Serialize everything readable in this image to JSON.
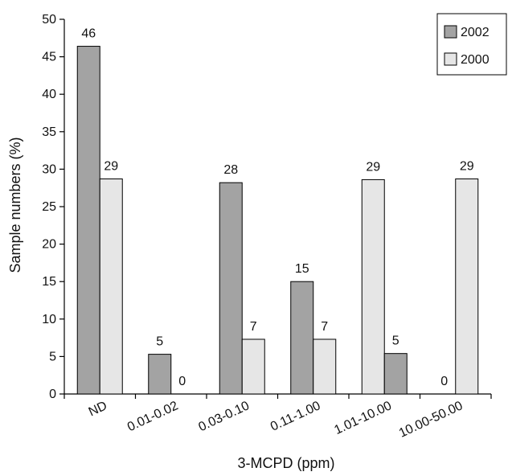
{
  "chart_data": {
    "type": "bar",
    "categories": [
      "ND",
      "0.01-0.02",
      "0.03-0.10",
      "0.11-1.00",
      "1.01-10.00",
      "10.00-50.00"
    ],
    "series": [
      {
        "name": "2002",
        "values": [
          46,
          5,
          28,
          15,
          5,
          0
        ],
        "labels": [
          "46",
          "5",
          "28",
          "15",
          "5",
          "0"
        ],
        "color": "#a3a3a3"
      },
      {
        "name": "2000",
        "values": [
          29,
          0,
          7,
          7,
          29,
          29
        ],
        "labels": [
          "29",
          "0",
          "7",
          "7",
          "29",
          "29"
        ],
        "color": "#e6e6e6"
      }
    ],
    "bar_heights_note_free": true,
    "plotted_values": [
      [
        46.4,
        5.3,
        28.2,
        15.0,
        5.4,
        0
      ],
      [
        28.7,
        0,
        7.3,
        7.3,
        28.6,
        28.7
      ]
    ],
    "category_order_in_group": [
      [
        "2002",
        "2000"
      ],
      [
        "2002",
        "2000"
      ],
      [
        "2002",
        "2000"
      ],
      [
        "2002",
        "2000"
      ],
      [
        "2000",
        "2002"
      ],
      [
        "2002",
        "2000"
      ]
    ],
    "xlabel": "3-MCPD (ppm)",
    "ylabel": "Sample numbers (%)",
    "ylim": [
      0,
      50
    ],
    "yticks": [
      0,
      5,
      10,
      15,
      20,
      25,
      30,
      35,
      40,
      45,
      50
    ],
    "grid": false,
    "legend_position": "top-right"
  }
}
